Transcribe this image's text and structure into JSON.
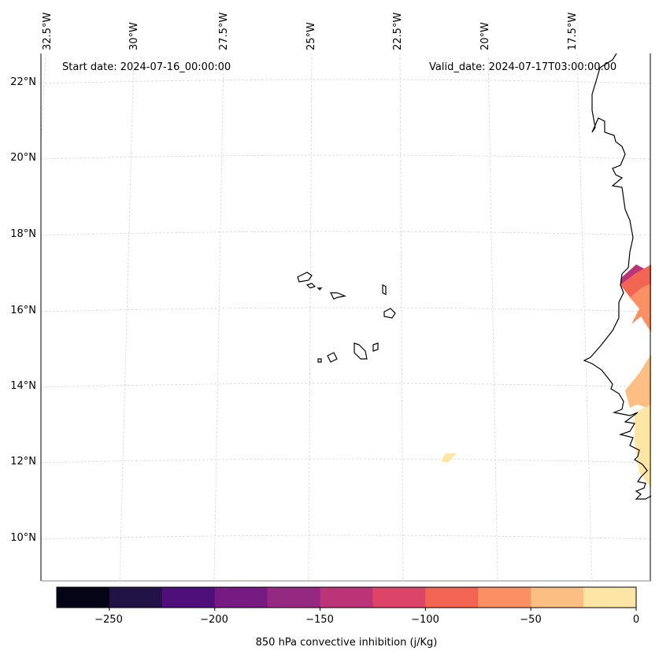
{
  "header": {
    "start_date": "Start date: 2024-07-16_00:00:00",
    "valid_date": "Valid_date: 2024-07-17T03:00:00.00"
  },
  "longitude_labels": [
    "32.5°W",
    "30°W",
    "27.5°W",
    "25°W",
    "22.5°W",
    "20°W",
    "17.5°W"
  ],
  "latitude_labels": [
    "22°N",
    "20°N",
    "18°N",
    "16°N",
    "14°N",
    "12°N",
    "10°N"
  ],
  "colorbar": {
    "title": "850 hPa convective inhibition (j/Kg)",
    "levels": [
      -275,
      -250,
      -225,
      -200,
      -175,
      -150,
      -125,
      -100,
      -75,
      -50,
      -25,
      0
    ],
    "tick_labels": [
      "−250",
      "−200",
      "−150",
      "−100",
      "−50",
      "0"
    ],
    "colors": [
      "#050416",
      "#211346",
      "#4e0f7a",
      "#751b81",
      "#952880",
      "#bb3478",
      "#dc4468",
      "#f26552",
      "#fc9065",
      "#fdbe83",
      "#fde6a5"
    ]
  },
  "colors": {
    "gridline": "#d0d0d0",
    "coastline": "#000000",
    "frame": "#000000"
  }
}
